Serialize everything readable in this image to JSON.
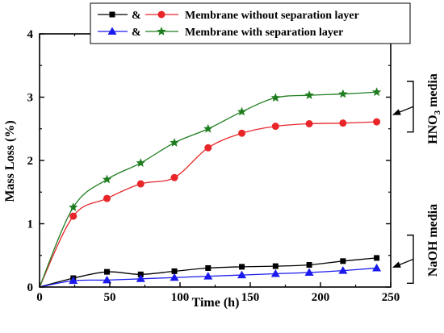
{
  "chart_data": {
    "type": "line",
    "xlabel": "Time (h)",
    "ylabel": "Mass Loss (%)",
    "xlim": [
      0,
      250
    ],
    "ylim": [
      0,
      4
    ],
    "x_ticks": [
      0,
      50,
      100,
      150,
      200,
      250
    ],
    "y_ticks": [
      0,
      1,
      2,
      3,
      4
    ],
    "x_tick_labels": [
      "0",
      "50",
      "100",
      "150",
      "200",
      "250"
    ],
    "y_tick_labels": [
      "0",
      "1",
      "2",
      "3",
      "4"
    ],
    "grid": false,
    "legend_position": "top",
    "legend": {
      "amp": "&",
      "row1_label": "Membrane without separation layer",
      "row2_label": "Membrane with separation layer"
    },
    "annotations": {
      "hno3_prefix": "HNO",
      "hno3_sub": "3",
      "hno3_suffix": " media",
      "naoh": "NaOH media"
    },
    "series": [
      {
        "id": "naoh-without",
        "media": "NaOH",
        "layer": "without",
        "marker": "square",
        "color": "#000000",
        "x": [
          0,
          24,
          48,
          72,
          96,
          120,
          144,
          168,
          192,
          216,
          240
        ],
        "y": [
          0,
          0.14,
          0.24,
          0.2,
          0.25,
          0.3,
          0.32,
          0.33,
          0.35,
          0.41,
          0.46
        ]
      },
      {
        "id": "hno3-without",
        "media": "HNO3",
        "layer": "without",
        "marker": "circle",
        "color": "#e8262a",
        "x": [
          0,
          24,
          48,
          72,
          96,
          120,
          144,
          168,
          192,
          216,
          240
        ],
        "y": [
          0,
          1.12,
          1.4,
          1.63,
          1.73,
          2.2,
          2.43,
          2.54,
          2.58,
          2.59,
          2.61
        ]
      },
      {
        "id": "naoh-with",
        "media": "NaOH",
        "layer": "with",
        "marker": "triangle",
        "color": "#1a1aee",
        "x": [
          0,
          24,
          48,
          72,
          96,
          120,
          144,
          168,
          192,
          216,
          240
        ],
        "y": [
          0,
          0.1,
          0.11,
          0.13,
          0.15,
          0.17,
          0.19,
          0.21,
          0.23,
          0.26,
          0.3
        ]
      },
      {
        "id": "hno3-with",
        "media": "HNO3",
        "layer": "with",
        "marker": "star",
        "color": "#1e7d1e",
        "x": [
          0,
          24,
          48,
          72,
          96,
          120,
          144,
          168,
          192,
          216,
          240
        ],
        "y": [
          0,
          1.26,
          1.7,
          1.96,
          2.28,
          2.5,
          2.77,
          2.99,
          3.03,
          3.05,
          3.08
        ]
      }
    ],
    "bracket_ranges": {
      "hno3": [
        2.45,
        3.25
      ],
      "naoh": [
        0.06,
        0.82
      ]
    }
  }
}
